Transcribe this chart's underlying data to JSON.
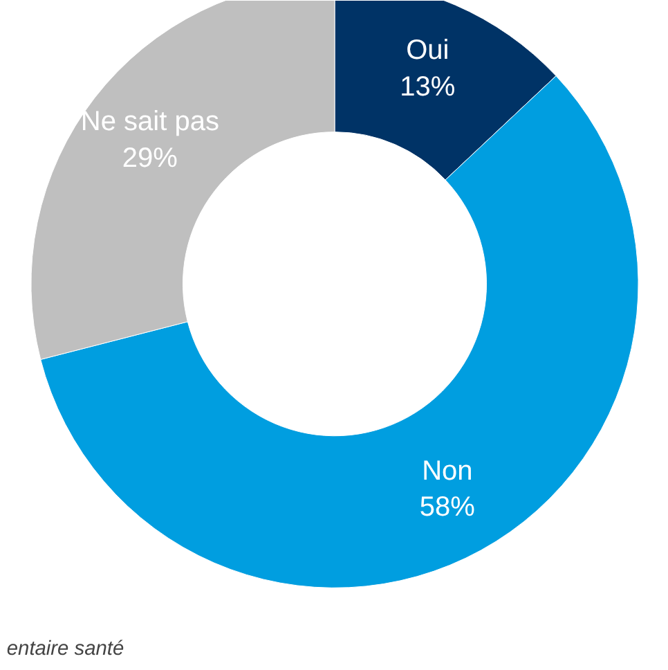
{
  "chart_data": {
    "type": "donut",
    "categories": [
      "Oui",
      "Non",
      "Ne sait pas"
    ],
    "values": [
      13,
      58,
      29
    ],
    "colors": [
      "#003366",
      "#009ee0",
      "#bfbfbf"
    ],
    "value_labels": [
      "13%",
      "58%",
      "29%"
    ],
    "legend": false,
    "annotations": [
      "entaire santé"
    ]
  }
}
